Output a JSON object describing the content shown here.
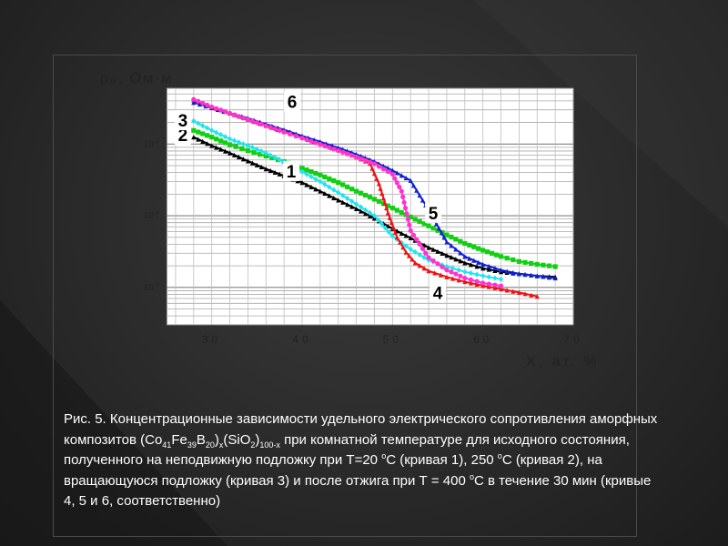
{
  "chart_data": {
    "type": "line",
    "title": "",
    "ylabel": "ρ₀, Ом·м",
    "xlabel": "X, ат. %",
    "xlim": [
      25,
      70
    ],
    "ylim": [
      3e-06,
      0.006
    ],
    "y_log_scale": true,
    "x_ticks": [
      30,
      40,
      50,
      60,
      70
    ],
    "y_ticks": [
      {
        "value": 0.001,
        "base": "10",
        "exp": "-3"
      },
      {
        "value": 0.0001,
        "base": "10",
        "exp": "-4"
      },
      {
        "value": 1e-05,
        "base": "10",
        "exp": "-5"
      }
    ],
    "grid": true,
    "series": [
      {
        "name": "1",
        "color": "#000000",
        "marker": "triangle",
        "x": [
          28,
          30,
          32,
          34,
          36,
          38,
          40,
          42,
          44,
          46,
          48,
          50,
          52,
          54,
          56,
          58,
          60,
          62,
          64,
          66,
          68
        ],
        "y": [
          0.00125,
          0.00095,
          0.00075,
          0.00058,
          0.00045,
          0.00036,
          0.00029,
          0.00022,
          0.000165,
          0.000125,
          9.2e-05,
          6.6e-05,
          4.9e-05,
          3.6e-05,
          2.8e-05,
          2.2e-05,
          1.85e-05,
          1.65e-05,
          1.55e-05,
          1.45e-05,
          1.4e-05
        ]
      },
      {
        "name": "2",
        "color": "#11d011",
        "marker": "square",
        "x": [
          28,
          30,
          32,
          34,
          36,
          38,
          40,
          42,
          44,
          46,
          48,
          50,
          52,
          54,
          56,
          58,
          60,
          62,
          64,
          66,
          68
        ],
        "y": [
          0.00155,
          0.00125,
          0.00098,
          0.00081,
          0.00068,
          0.00057,
          0.00046,
          0.00037,
          0.00029,
          0.00022,
          0.00017,
          0.000128,
          9.6e-05,
          7.2e-05,
          5.4e-05,
          4.1e-05,
          3.3e-05,
          2.7e-05,
          2.3e-05,
          2.1e-05,
          1.95e-05
        ]
      },
      {
        "name": "3",
        "color": "#22e4ee",
        "marker": "diamond",
        "x": [
          28,
          30,
          32,
          34,
          36,
          38,
          40,
          42,
          44,
          46,
          48,
          50,
          52,
          54,
          56,
          58,
          60,
          62
        ],
        "y": [
          0.0021,
          0.00155,
          0.00118,
          0.00095,
          0.00075,
          0.00056,
          0.00041,
          0.0003,
          0.00021,
          0.000145,
          0.0001,
          5.2e-05,
          3.4e-05,
          2.4e-05,
          1.95e-05,
          1.65e-05,
          1.45e-05,
          1.3e-05
        ]
      },
      {
        "name": "4",
        "color": "#ee1111",
        "marker": "triangle",
        "x": [
          28,
          30,
          32,
          34,
          36,
          38,
          40,
          42,
          44,
          46,
          47.5,
          48.5,
          49.5,
          50.5,
          51.5,
          52.5,
          54,
          56,
          58,
          60,
          62,
          64,
          66
        ],
        "y": [
          0.0041,
          0.0033,
          0.0027,
          0.0022,
          0.00181,
          0.00149,
          0.00123,
          0.00101,
          0.00083,
          0.00066,
          0.00054,
          0.00028,
          0.00011,
          5e-05,
          3.1e-05,
          2.2e-05,
          1.7e-05,
          1.4e-05,
          1.2e-05,
          1.06e-05,
          9.5e-06,
          8.5e-06,
          7.5e-06
        ]
      },
      {
        "name": "5",
        "color": "#1020d0",
        "marker": "triangle",
        "x": [
          28,
          30,
          32,
          34,
          36,
          38,
          40,
          42,
          44,
          46,
          48,
          50,
          52,
          54,
          56,
          58,
          60,
          62,
          64,
          66,
          68
        ],
        "y": [
          0.0038,
          0.0032,
          0.0027,
          0.0023,
          0.0019,
          0.00158,
          0.0013,
          0.00108,
          0.00089,
          0.00072,
          0.00057,
          0.00043,
          0.00031,
          0.00012,
          4.3e-05,
          2.7e-05,
          2.1e-05,
          1.75e-05,
          1.55e-05,
          1.45e-05,
          1.35e-05
        ]
      },
      {
        "name": "6",
        "color": "#ff33cc",
        "marker": "circle",
        "x": [
          28,
          30,
          32,
          34,
          36,
          38,
          40,
          42,
          44,
          46,
          48,
          50,
          51,
          52,
          54,
          56,
          58,
          60,
          62
        ],
        "y": [
          0.0042,
          0.0033,
          0.0027,
          0.0022,
          0.0018,
          0.00147,
          0.00121,
          0.00099,
          0.00081,
          0.00066,
          0.00053,
          0.00038,
          0.00022,
          6.2e-05,
          2.6e-05,
          1.75e-05,
          1.35e-05,
          1.15e-05,
          1.05e-05
        ]
      }
    ],
    "annotations": [
      {
        "text": "1",
        "x": 38.8,
        "y": 0.00042
      },
      {
        "text": "2",
        "x": 26.8,
        "y": 0.00135
      },
      {
        "text": "3",
        "x": 26.8,
        "y": 0.00215
      },
      {
        "text": "4",
        "x": 55,
        "y": 8.5e-06
      },
      {
        "text": "5",
        "x": 54.5,
        "y": 0.00011
      },
      {
        "text": "6",
        "x": 38.9,
        "y": 0.0039
      }
    ]
  },
  "caption": {
    "p1": "Рис. 5. Концентрационные зависимости удельного электрического сопротивления аморфных композитов (Co",
    "s1": "41",
    "p2": "Fe",
    "s2": "39",
    "p3": "B",
    "s3": "20",
    "p4": ")",
    "s4": "x",
    "p5": "(SiO",
    "s5": "2",
    "p6": ")",
    "s6": "100-x",
    "p7": " при комнатной температуре для исходного состояния, полученного на неподвижную подложку при Т=20 ",
    "sup1": "o",
    "p8": "С (кривая 1), 250 ",
    "sup2": "o",
    "p9": "С (кривая 2), на вращающуюся подложку (кривая 3) и после отжига при Т = 400 ",
    "sup3": "o",
    "p10": "С в течение 30 мин (кривые 4, 5 и 6, соответственно)"
  }
}
